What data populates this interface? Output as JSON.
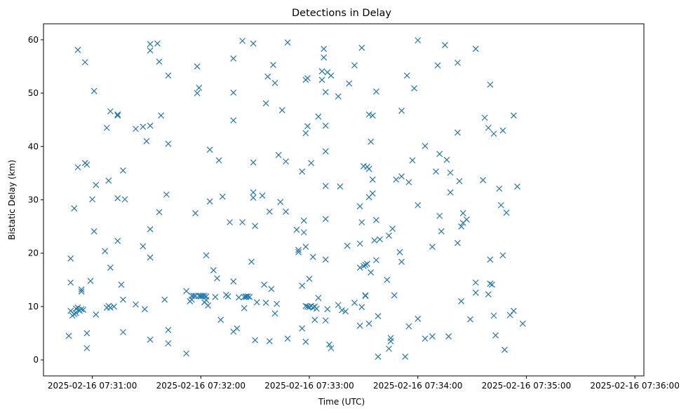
{
  "chart_data": {
    "type": "scatter",
    "title": "Detections in Delay",
    "xlabel": "Time (UTC)",
    "ylabel": "Bistatic Delay (km)",
    "marker": "x",
    "color": "#1f77b4",
    "grid": false,
    "x_tick_labels": [
      "2025-02-16 07:31:00",
      "2025-02-16 07:32:00",
      "2025-02-16 07:33:00",
      "2025-02-16 07:34:00",
      "2025-02-16 07:35:00",
      "2025-02-16 07:36:00"
    ],
    "y_ticks": [
      0,
      10,
      20,
      30,
      40,
      50,
      60
    ],
    "xlim": [
      "2025-02-16 07:30:33",
      "2025-02-16 07:36:05"
    ],
    "ylim": [
      -3,
      63
    ],
    "points": [
      [
        "2025-02-16 07:30:47",
        4.5
      ],
      [
        "2025-02-16 07:30:48",
        9.2
      ],
      [
        "2025-02-16 07:30:48",
        19.0
      ],
      [
        "2025-02-16 07:30:48",
        14.5
      ],
      [
        "2025-02-16 07:30:49",
        8.3
      ],
      [
        "2025-02-16 07:30:50",
        28.4
      ],
      [
        "2025-02-16 07:30:50",
        8.6
      ],
      [
        "2025-02-16 07:30:51",
        9.6
      ],
      [
        "2025-02-16 07:30:51",
        8.8
      ],
      [
        "2025-02-16 07:30:52",
        58.1
      ],
      [
        "2025-02-16 07:30:52",
        36.1
      ],
      [
        "2025-02-16 07:30:52",
        9.8
      ],
      [
        "2025-02-16 07:30:53",
        9.2
      ],
      [
        "2025-02-16 07:30:54",
        13.2
      ],
      [
        "2025-02-16 07:30:54",
        12.8
      ],
      [
        "2025-02-16 07:30:54",
        9.5
      ],
      [
        "2025-02-16 07:30:55",
        9.4
      ],
      [
        "2025-02-16 07:30:56",
        36.9
      ],
      [
        "2025-02-16 07:30:56",
        55.8
      ],
      [
        "2025-02-16 07:30:57",
        36.6
      ],
      [
        "2025-02-16 07:30:57",
        5.0
      ],
      [
        "2025-02-16 07:30:57",
        2.2
      ],
      [
        "2025-02-16 07:30:59",
        14.8
      ],
      [
        "2025-02-16 07:31:00",
        30.1
      ],
      [
        "2025-02-16 07:31:01",
        24.1
      ],
      [
        "2025-02-16 07:31:01",
        50.4
      ],
      [
        "2025-02-16 07:31:02",
        32.8
      ],
      [
        "2025-02-16 07:31:02",
        8.5
      ],
      [
        "2025-02-16 07:31:07",
        20.4
      ],
      [
        "2025-02-16 07:31:08",
        43.5
      ],
      [
        "2025-02-16 07:31:08",
        9.8
      ],
      [
        "2025-02-16 07:31:09",
        33.6
      ],
      [
        "2025-02-16 07:31:09",
        10.1
      ],
      [
        "2025-02-16 07:31:10",
        17.3
      ],
      [
        "2025-02-16 07:31:10",
        46.6
      ],
      [
        "2025-02-16 07:31:10",
        9.8
      ],
      [
        "2025-02-16 07:31:12",
        10.0
      ],
      [
        "2025-02-16 07:31:14",
        46.0
      ],
      [
        "2025-02-16 07:31:14",
        45.8
      ],
      [
        "2025-02-16 07:31:14",
        30.3
      ],
      [
        "2025-02-16 07:31:14",
        22.3
      ],
      [
        "2025-02-16 07:31:16",
        14.1
      ],
      [
        "2025-02-16 07:31:17",
        35.5
      ],
      [
        "2025-02-16 07:31:17",
        11.3
      ],
      [
        "2025-02-16 07:31:17",
        5.2
      ],
      [
        "2025-02-16 07:31:18",
        30.1
      ],
      [
        "2025-02-16 07:31:24",
        43.3
      ],
      [
        "2025-02-16 07:31:24",
        10.4
      ],
      [
        "2025-02-16 07:31:28",
        43.7
      ],
      [
        "2025-02-16 07:31:28",
        21.3
      ],
      [
        "2025-02-16 07:31:29",
        9.5
      ],
      [
        "2025-02-16 07:31:30",
        41.0
      ],
      [
        "2025-02-16 07:31:32",
        58.0
      ],
      [
        "2025-02-16 07:31:32",
        59.2
      ],
      [
        "2025-02-16 07:31:32",
        43.9
      ],
      [
        "2025-02-16 07:31:32",
        24.5
      ],
      [
        "2025-02-16 07:31:32",
        19.2
      ],
      [
        "2025-02-16 07:31:32",
        3.8
      ],
      [
        "2025-02-16 07:31:36",
        59.3
      ],
      [
        "2025-02-16 07:31:37",
        27.7
      ],
      [
        "2025-02-16 07:31:37",
        55.9
      ],
      [
        "2025-02-16 07:31:38",
        45.8
      ],
      [
        "2025-02-16 07:31:40",
        11.3
      ],
      [
        "2025-02-16 07:31:41",
        31.0
      ],
      [
        "2025-02-16 07:31:42",
        40.5
      ],
      [
        "2025-02-16 07:31:42",
        53.3
      ],
      [
        "2025-02-16 07:31:42",
        5.6
      ],
      [
        "2025-02-16 07:31:42",
        3.1
      ],
      [
        "2025-02-16 07:31:52",
        12.9
      ],
      [
        "2025-02-16 07:31:52",
        1.2
      ],
      [
        "2025-02-16 07:31:54",
        11.0
      ],
      [
        "2025-02-16 07:31:55",
        12.0
      ],
      [
        "2025-02-16 07:31:55",
        11.3
      ],
      [
        "2025-02-16 07:31:56",
        12.0
      ],
      [
        "2025-02-16 07:31:57",
        12.0
      ],
      [
        "2025-02-16 07:31:57",
        27.5
      ],
      [
        "2025-02-16 07:31:58",
        50.0
      ],
      [
        "2025-02-16 07:31:58",
        55.0
      ],
      [
        "2025-02-16 07:31:59",
        51.0
      ],
      [
        "2025-02-16 07:31:59",
        12.0
      ],
      [
        "2025-02-16 07:32:00",
        12.0
      ],
      [
        "2025-02-16 07:32:00",
        11.9
      ],
      [
        "2025-02-16 07:32:01",
        12.0
      ],
      [
        "2025-02-16 07:32:02",
        12.0
      ],
      [
        "2025-02-16 07:32:02",
        10.8
      ],
      [
        "2025-02-16 07:32:03",
        11.9
      ],
      [
        "2025-02-16 07:32:03",
        11.2
      ],
      [
        "2025-02-16 07:32:03",
        19.6
      ],
      [
        "2025-02-16 07:32:04",
        10.2
      ],
      [
        "2025-02-16 07:32:05",
        29.7
      ],
      [
        "2025-02-16 07:32:05",
        39.4
      ],
      [
        "2025-02-16 07:32:07",
        16.8
      ],
      [
        "2025-02-16 07:32:08",
        11.8
      ],
      [
        "2025-02-16 07:32:09",
        15.3
      ],
      [
        "2025-02-16 07:32:10",
        37.4
      ],
      [
        "2025-02-16 07:32:11",
        7.5
      ],
      [
        "2025-02-16 07:32:12",
        30.6
      ],
      [
        "2025-02-16 07:32:14",
        12.2
      ],
      [
        "2025-02-16 07:32:15",
        11.9
      ],
      [
        "2025-02-16 07:32:16",
        25.8
      ],
      [
        "2025-02-16 07:32:18",
        56.5
      ],
      [
        "2025-02-16 07:32:18",
        50.1
      ],
      [
        "2025-02-16 07:32:18",
        44.9
      ],
      [
        "2025-02-16 07:32:18",
        14.7
      ],
      [
        "2025-02-16 07:32:18",
        5.3
      ],
      [
        "2025-02-16 07:32:20",
        5.9
      ],
      [
        "2025-02-16 07:32:21",
        11.7
      ],
      [
        "2025-02-16 07:32:23",
        59.8
      ],
      [
        "2025-02-16 07:32:23",
        25.8
      ],
      [
        "2025-02-16 07:32:24",
        9.7
      ],
      [
        "2025-02-16 07:32:24",
        11.8
      ],
      [
        "2025-02-16 07:32:25",
        11.9
      ],
      [
        "2025-02-16 07:32:25",
        11.8
      ],
      [
        "2025-02-16 07:32:26",
        11.9
      ],
      [
        "2025-02-16 07:32:27",
        11.8
      ],
      [
        "2025-02-16 07:32:28",
        18.4
      ],
      [
        "2025-02-16 07:32:29",
        59.3
      ],
      [
        "2025-02-16 07:32:29",
        37.0
      ],
      [
        "2025-02-16 07:32:29",
        31.4
      ],
      [
        "2025-02-16 07:32:29",
        30.4
      ],
      [
        "2025-02-16 07:32:30",
        25.1
      ],
      [
        "2025-02-16 07:32:30",
        3.7
      ],
      [
        "2025-02-16 07:32:31",
        10.8
      ],
      [
        "2025-02-16 07:32:34",
        30.8
      ],
      [
        "2025-02-16 07:32:35",
        14.1
      ],
      [
        "2025-02-16 07:32:36",
        48.1
      ],
      [
        "2025-02-16 07:32:36",
        10.7
      ],
      [
        "2025-02-16 07:32:37",
        53.1
      ],
      [
        "2025-02-16 07:32:38",
        27.8
      ],
      [
        "2025-02-16 07:32:38",
        3.5
      ],
      [
        "2025-02-16 07:32:39",
        13.3
      ],
      [
        "2025-02-16 07:32:40",
        55.3
      ],
      [
        "2025-02-16 07:32:41",
        51.9
      ],
      [
        "2025-02-16 07:32:41",
        8.7
      ],
      [
        "2025-02-16 07:32:42",
        10.5
      ],
      [
        "2025-02-16 07:32:43",
        38.4
      ],
      [
        "2025-02-16 07:32:44",
        29.6
      ],
      [
        "2025-02-16 07:32:45",
        46.8
      ],
      [
        "2025-02-16 07:32:47",
        37.2
      ],
      [
        "2025-02-16 07:32:47",
        27.8
      ],
      [
        "2025-02-16 07:32:48",
        59.5
      ],
      [
        "2025-02-16 07:32:48",
        4.0
      ],
      [
        "2025-02-16 07:32:53",
        24.4
      ],
      [
        "2025-02-16 07:32:54",
        20.6
      ],
      [
        "2025-02-16 07:32:54",
        20.2
      ],
      [
        "2025-02-16 07:32:56",
        35.3
      ],
      [
        "2025-02-16 07:32:56",
        13.9
      ],
      [
        "2025-02-16 07:32:56",
        5.9
      ],
      [
        "2025-02-16 07:32:57",
        23.9
      ],
      [
        "2025-02-16 07:32:57",
        26.1
      ],
      [
        "2025-02-16 07:32:58",
        52.5
      ],
      [
        "2025-02-16 07:32:58",
        42.5
      ],
      [
        "2025-02-16 07:32:58",
        21.2
      ],
      [
        "2025-02-16 07:32:58",
        10.1
      ],
      [
        "2025-02-16 07:32:58",
        3.4
      ],
      [
        "2025-02-16 07:32:59",
        52.8
      ],
      [
        "2025-02-16 07:32:59",
        43.8
      ],
      [
        "2025-02-16 07:32:59",
        10.0
      ],
      [
        "2025-02-16 07:33:00",
        15.2
      ],
      [
        "2025-02-16 07:33:00",
        9.9
      ],
      [
        "2025-02-16 07:33:01",
        10.1
      ],
      [
        "2025-02-16 07:33:01",
        36.9
      ],
      [
        "2025-02-16 07:33:02",
        19.3
      ],
      [
        "2025-02-16 07:33:02",
        9.8
      ],
      [
        "2025-02-16 07:33:03",
        7.5
      ],
      [
        "2025-02-16 07:33:03",
        10.0
      ],
      [
        "2025-02-16 07:33:04",
        9.6
      ],
      [
        "2025-02-16 07:33:05",
        11.6
      ],
      [
        "2025-02-16 07:33:05",
        45.6
      ],
      [
        "2025-02-16 07:33:07",
        54.1
      ],
      [
        "2025-02-16 07:33:07",
        52.5
      ],
      [
        "2025-02-16 07:33:08",
        56.7
      ],
      [
        "2025-02-16 07:33:08",
        58.3
      ],
      [
        "2025-02-16 07:33:09",
        50.2
      ],
      [
        "2025-02-16 07:33:09",
        43.9
      ],
      [
        "2025-02-16 07:33:09",
        39.1
      ],
      [
        "2025-02-16 07:33:09",
        32.6
      ],
      [
        "2025-02-16 07:33:09",
        26.4
      ],
      [
        "2025-02-16 07:33:09",
        18.8
      ],
      [
        "2025-02-16 07:33:09",
        7.4
      ],
      [
        "2025-02-16 07:33:10",
        53.9
      ],
      [
        "2025-02-16 07:33:10",
        9.5
      ],
      [
        "2025-02-16 07:33:11",
        2.9
      ],
      [
        "2025-02-16 07:33:12",
        2.2
      ],
      [
        "2025-02-16 07:33:12",
        53.3
      ],
      [
        "2025-02-16 07:33:16",
        49.4
      ],
      [
        "2025-02-16 07:33:16",
        10.3
      ],
      [
        "2025-02-16 07:33:17",
        32.5
      ],
      [
        "2025-02-16 07:33:18",
        9.3
      ],
      [
        "2025-02-16 07:33:20",
        9.1
      ],
      [
        "2025-02-16 07:33:21",
        21.4
      ],
      [
        "2025-02-16 07:33:22",
        51.8
      ],
      [
        "2025-02-16 07:33:25",
        10.7
      ],
      [
        "2025-02-16 07:33:25",
        55.2
      ],
      [
        "2025-02-16 07:33:28",
        21.8
      ],
      [
        "2025-02-16 07:33:28",
        28.8
      ],
      [
        "2025-02-16 07:33:28",
        17.3
      ],
      [
        "2025-02-16 07:33:28",
        6.4
      ],
      [
        "2025-02-16 07:33:29",
        58.5
      ],
      [
        "2025-02-16 07:33:29",
        25.8
      ],
      [
        "2025-02-16 07:33:29",
        9.9
      ],
      [
        "2025-02-16 07:33:30",
        36.3
      ],
      [
        "2025-02-16 07:33:30",
        17.6
      ],
      [
        "2025-02-16 07:33:31",
        12.0
      ],
      [
        "2025-02-16 07:33:31",
        17.8
      ],
      [
        "2025-02-16 07:33:31",
        12.1
      ],
      [
        "2025-02-16 07:33:32",
        36.2
      ],
      [
        "2025-02-16 07:33:32",
        18.0
      ],
      [
        "2025-02-16 07:33:33",
        46.0
      ],
      [
        "2025-02-16 07:33:33",
        35.8
      ],
      [
        "2025-02-16 07:33:33",
        30.5
      ],
      [
        "2025-02-16 07:33:33",
        6.8
      ],
      [
        "2025-02-16 07:33:34",
        40.9
      ],
      [
        "2025-02-16 07:33:34",
        16.4
      ],
      [
        "2025-02-16 07:33:35",
        45.8
      ],
      [
        "2025-02-16 07:33:35",
        33.8
      ],
      [
        "2025-02-16 07:33:35",
        31.2
      ],
      [
        "2025-02-16 07:33:36",
        22.4
      ],
      [
        "2025-02-16 07:33:37",
        50.3
      ],
      [
        "2025-02-16 07:33:37",
        26.2
      ],
      [
        "2025-02-16 07:33:37",
        18.7
      ],
      [
        "2025-02-16 07:33:38",
        0.6
      ],
      [
        "2025-02-16 07:33:38",
        8.2
      ],
      [
        "2025-02-16 07:33:39",
        22.6
      ],
      [
        "2025-02-16 07:33:43",
        15.0
      ],
      [
        "2025-02-16 07:33:44",
        23.3
      ],
      [
        "2025-02-16 07:33:44",
        2.1
      ],
      [
        "2025-02-16 07:33:45",
        3.5
      ],
      [
        "2025-02-16 07:33:45",
        4.1
      ],
      [
        "2025-02-16 07:33:46",
        24.6
      ],
      [
        "2025-02-16 07:33:47",
        12.1
      ],
      [
        "2025-02-16 07:33:48",
        33.8
      ],
      [
        "2025-02-16 07:33:50",
        20.2
      ],
      [
        "2025-02-16 07:33:51",
        34.4
      ],
      [
        "2025-02-16 07:33:51",
        18.4
      ],
      [
        "2025-02-16 07:33:51",
        46.7
      ],
      [
        "2025-02-16 07:33:53",
        0.6
      ],
      [
        "2025-02-16 07:33:54",
        53.3
      ],
      [
        "2025-02-16 07:33:55",
        33.3
      ],
      [
        "2025-02-16 07:33:55",
        6.3
      ],
      [
        "2025-02-16 07:33:57",
        37.4
      ],
      [
        "2025-02-16 07:33:58",
        50.9
      ],
      [
        "2025-02-16 07:34:00",
        59.9
      ],
      [
        "2025-02-16 07:34:00",
        29.0
      ],
      [
        "2025-02-16 07:34:00",
        7.7
      ],
      [
        "2025-02-16 07:34:04",
        40.1
      ],
      [
        "2025-02-16 07:34:04",
        4.0
      ],
      [
        "2025-02-16 07:34:08",
        21.2
      ],
      [
        "2025-02-16 07:34:08",
        4.4
      ],
      [
        "2025-02-16 07:34:10",
        35.3
      ],
      [
        "2025-02-16 07:34:11",
        55.2
      ],
      [
        "2025-02-16 07:34:12",
        38.6
      ],
      [
        "2025-02-16 07:34:12",
        27.0
      ],
      [
        "2025-02-16 07:34:13",
        24.1
      ],
      [
        "2025-02-16 07:34:15",
        59.0
      ],
      [
        "2025-02-16 07:34:16",
        37.5
      ],
      [
        "2025-02-16 07:34:17",
        4.4
      ],
      [
        "2025-02-16 07:34:18",
        31.4
      ],
      [
        "2025-02-16 07:34:18",
        35.1
      ],
      [
        "2025-02-16 07:34:22",
        55.7
      ],
      [
        "2025-02-16 07:34:22",
        42.6
      ],
      [
        "2025-02-16 07:34:22",
        21.9
      ],
      [
        "2025-02-16 07:34:23",
        33.5
      ],
      [
        "2025-02-16 07:34:24",
        25.0
      ],
      [
        "2025-02-16 07:34:24",
        11.0
      ],
      [
        "2025-02-16 07:34:25",
        25.7
      ],
      [
        "2025-02-16 07:34:25",
        27.5
      ],
      [
        "2025-02-16 07:34:27",
        26.3
      ],
      [
        "2025-02-16 07:34:29",
        7.6
      ],
      [
        "2025-02-16 07:34:32",
        58.3
      ],
      [
        "2025-02-16 07:34:32",
        14.5
      ],
      [
        "2025-02-16 07:34:32",
        12.6
      ],
      [
        "2025-02-16 07:34:36",
        33.7
      ],
      [
        "2025-02-16 07:34:37",
        45.4
      ],
      [
        "2025-02-16 07:34:39",
        43.5
      ],
      [
        "2025-02-16 07:34:39",
        12.3
      ],
      [
        "2025-02-16 07:34:40",
        51.6
      ],
      [
        "2025-02-16 07:34:40",
        18.8
      ],
      [
        "2025-02-16 07:34:40",
        14.3
      ],
      [
        "2025-02-16 07:34:41",
        14.1
      ],
      [
        "2025-02-16 07:34:42",
        42.4
      ],
      [
        "2025-02-16 07:34:42",
        8.3
      ],
      [
        "2025-02-16 07:34:43",
        4.6
      ],
      [
        "2025-02-16 07:34:45",
        32.1
      ],
      [
        "2025-02-16 07:34:46",
        29.0
      ],
      [
        "2025-02-16 07:34:47",
        43.0
      ],
      [
        "2025-02-16 07:34:47",
        19.6
      ],
      [
        "2025-02-16 07:34:48",
        1.9
      ],
      [
        "2025-02-16 07:34:49",
        27.6
      ],
      [
        "2025-02-16 07:34:51",
        8.4
      ],
      [
        "2025-02-16 07:34:53",
        45.8
      ],
      [
        "2025-02-16 07:34:53",
        9.2
      ],
      [
        "2025-02-16 07:34:55",
        32.5
      ],
      [
        "2025-02-16 07:34:58",
        6.8
      ]
    ]
  }
}
